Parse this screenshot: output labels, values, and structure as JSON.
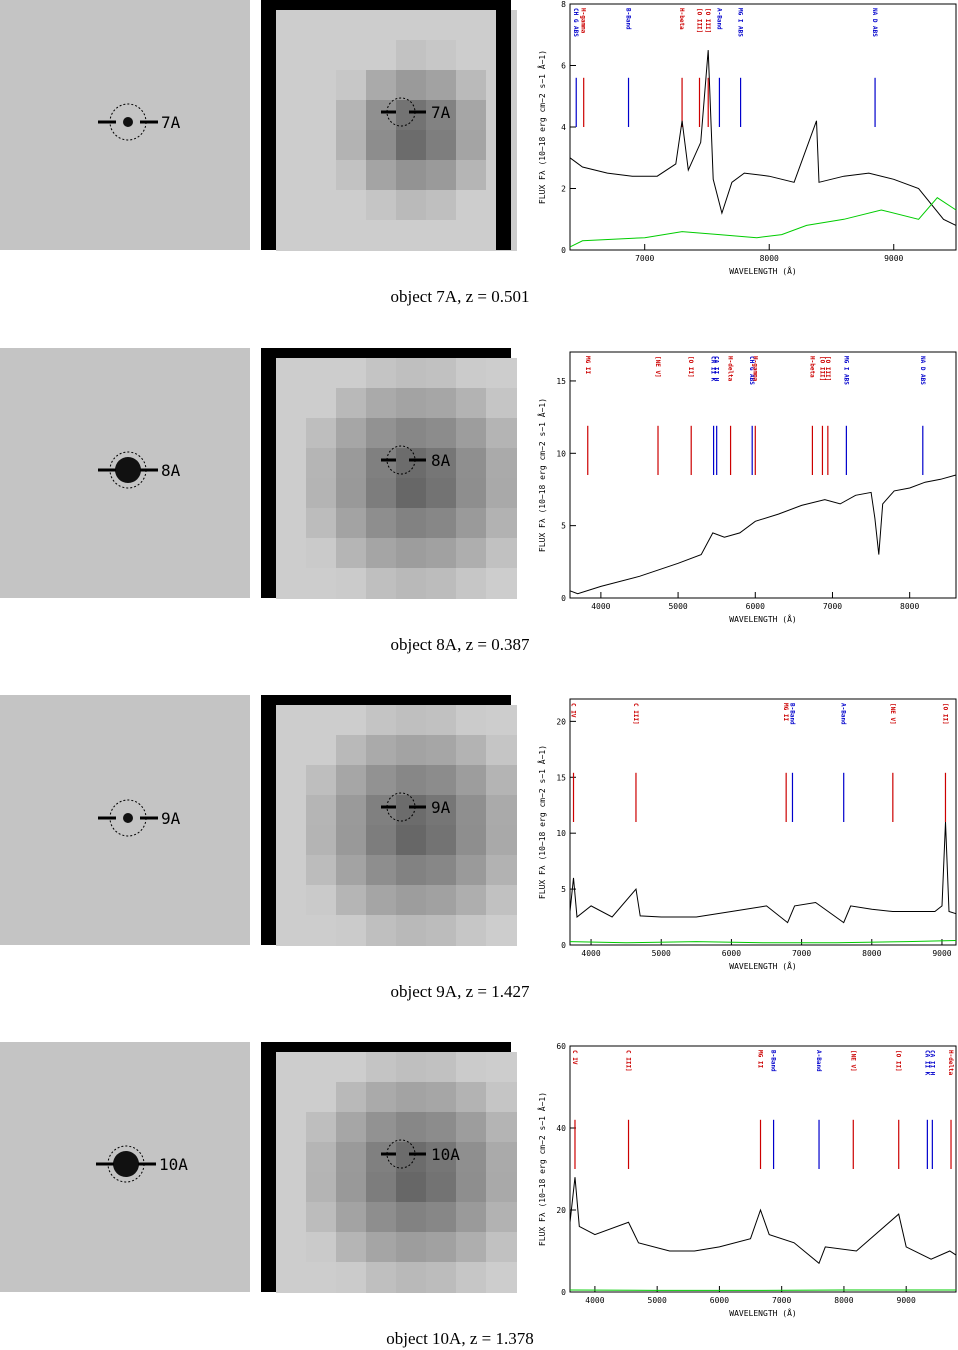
{
  "chart_data": [
    {
      "type": "line",
      "label": "7A",
      "caption": "object 7A, z = 0.501",
      "xlabel": "WAVELENGTH (Å)",
      "ylabel": "FLUX Fλ (10−18 erg cm−2 s−1 Å−1)",
      "xlim": [
        6400,
        9500
      ],
      "xticks": [
        7000,
        8000,
        9000
      ],
      "ylim": [
        0,
        8
      ],
      "yticks": [
        0,
        2,
        4,
        6,
        8
      ],
      "series": [
        {
          "color": "#000000",
          "x": [
            6400,
            6500,
            6700,
            6900,
            7100,
            7250,
            7300,
            7350,
            7450,
            7510,
            7550,
            7620,
            7700,
            7800,
            8000,
            8200,
            8380,
            8400,
            8600,
            8800,
            9000,
            9200,
            9400,
            9500
          ],
          "values": [
            3,
            2.7,
            2.5,
            2.4,
            2.4,
            2.8,
            4.2,
            2.6,
            3.5,
            6.5,
            2.3,
            1.2,
            2.2,
            2.5,
            2.4,
            2.2,
            4.2,
            2.2,
            2.4,
            2.5,
            2.3,
            2.0,
            1.0,
            0.8
          ]
        },
        {
          "color": "#00cc00",
          "x": [
            6400,
            6500,
            7000,
            7300,
            7600,
            7900,
            8100,
            8300,
            8600,
            8900,
            9200,
            9350,
            9500
          ],
          "values": [
            0.1,
            0.3,
            0.4,
            0.6,
            0.5,
            0.4,
            0.5,
            0.8,
            1.0,
            1.3,
            1.0,
            1.7,
            1.3
          ]
        }
      ],
      "lines": [
        {
          "label": "CH G ABS",
          "x": 6450,
          "color": "#0000cc"
        },
        {
          "label": "H-gamma",
          "x": 6510,
          "color": "#cc0000"
        },
        {
          "label": "B-Band",
          "x": 6870,
          "color": "#0000cc"
        },
        {
          "label": "H-beta",
          "x": 7300,
          "color": "#cc0000"
        },
        {
          "label": "[O III]",
          "x": 7440,
          "color": "#cc0000"
        },
        {
          "label": "[O III]",
          "x": 7510,
          "color": "#cc0000"
        },
        {
          "label": "A-Band",
          "x": 7600,
          "color": "#0000cc"
        },
        {
          "label": "MG I ABS",
          "x": 7770,
          "color": "#0000cc"
        },
        {
          "label": "NA D ABS",
          "x": 8850,
          "color": "#0000cc"
        }
      ]
    },
    {
      "type": "line",
      "label": "8A",
      "caption": "object 8A, z = 0.387",
      "xlabel": "WAVELENGTH (Å)",
      "ylabel": "FLUX Fλ (10−18 erg cm−2 s−1 Å−1)",
      "xlim": [
        3600,
        8600
      ],
      "xticks": [
        4000,
        5000,
        6000,
        7000,
        8000
      ],
      "ylim": [
        0,
        17
      ],
      "yticks": [
        0,
        5,
        10,
        15
      ],
      "series": [
        {
          "color": "#000000",
          "x": [
            3600,
            3700,
            4000,
            4500,
            5000,
            5300,
            5450,
            5600,
            5800,
            6000,
            6300,
            6600,
            6900,
            7100,
            7300,
            7500,
            7550,
            7600,
            7650,
            7800,
            8000,
            8200,
            8400,
            8600
          ],
          "values": [
            0.5,
            0.3,
            0.8,
            1.5,
            2.4,
            3.0,
            4.5,
            4.2,
            4.5,
            5.3,
            5.8,
            6.4,
            6.8,
            6.5,
            7.1,
            7.3,
            5.5,
            3.0,
            6.5,
            7.4,
            7.6,
            8.0,
            8.2,
            8.5
          ]
        }
      ],
      "lines": [
        {
          "label": "MG II",
          "x": 3830,
          "color": "#cc0000"
        },
        {
          "label": "[NE V]",
          "x": 4740,
          "color": "#cc0000"
        },
        {
          "label": "[O II]",
          "x": 5170,
          "color": "#cc0000"
        },
        {
          "label": "CA II K",
          "x": 5460,
          "color": "#0000cc"
        },
        {
          "label": "CA II H",
          "x": 5500,
          "color": "#0000cc"
        },
        {
          "label": "H-delta",
          "x": 5680,
          "color": "#cc0000"
        },
        {
          "label": "CH G ABS",
          "x": 5960,
          "color": "#0000cc"
        },
        {
          "label": "H-gamma",
          "x": 6000,
          "color": "#cc0000"
        },
        {
          "label": "H-beta",
          "x": 6740,
          "color": "#cc0000"
        },
        {
          "label": "[O III]",
          "x": 6870,
          "color": "#cc0000"
        },
        {
          "label": "[O III]",
          "x": 6940,
          "color": "#cc0000"
        },
        {
          "label": "MG I ABS",
          "x": 7180,
          "color": "#0000cc"
        },
        {
          "label": "NA D ABS",
          "x": 8170,
          "color": "#0000cc"
        }
      ]
    },
    {
      "type": "line",
      "label": "9A",
      "caption": "object 9A, z = 1.427",
      "xlabel": "WAVELENGTH (Å)",
      "ylabel": "FLUX Fλ (10−18 erg cm−2 s−1 Å−1)",
      "xlim": [
        3700,
        9200
      ],
      "xticks": [
        4000,
        5000,
        6000,
        7000,
        8000,
        9000
      ],
      "ylim": [
        0,
        22
      ],
      "yticks": [
        0,
        5,
        10,
        15,
        20
      ],
      "series": [
        {
          "color": "#000000",
          "x": [
            3700,
            3750,
            3800,
            4000,
            4300,
            4640,
            4700,
            5000,
            5500,
            6000,
            6500,
            6800,
            6900,
            7200,
            7600,
            7700,
            8000,
            8300,
            8600,
            8900,
            9000,
            9050,
            9100,
            9200
          ],
          "values": [
            3,
            6,
            2.5,
            3.5,
            2.5,
            5,
            2.6,
            2.5,
            2.5,
            3.0,
            3.5,
            2.0,
            3.5,
            3.8,
            2.0,
            3.5,
            3.2,
            3.0,
            3.0,
            3.0,
            3.5,
            11,
            3,
            2.8
          ]
        },
        {
          "color": "#00cc00",
          "x": [
            3700,
            4500,
            5500,
            6500,
            7500,
            8500,
            9200
          ],
          "values": [
            0.3,
            0.2,
            0.3,
            0.2,
            0.2,
            0.3,
            0.4
          ]
        }
      ],
      "lines": [
        {
          "label": "C IV",
          "x": 3750,
          "color": "#cc0000"
        },
        {
          "label": "C III]",
          "x": 4640,
          "color": "#cc0000"
        },
        {
          "label": "MG II",
          "x": 6780,
          "color": "#cc0000"
        },
        {
          "label": "B-Band",
          "x": 6870,
          "color": "#0000cc"
        },
        {
          "label": "A-Band",
          "x": 7600,
          "color": "#0000cc"
        },
        {
          "label": "[NE V]",
          "x": 8300,
          "color": "#cc0000"
        },
        {
          "label": "[O II]",
          "x": 9050,
          "color": "#cc0000"
        }
      ]
    },
    {
      "type": "line",
      "label": "10A",
      "caption": "object 10A, z = 1.378",
      "xlabel": "WAVELENGTH (Å)",
      "ylabel": "FLUX Fλ (10−18 erg cm−2 s−1 Å−1)",
      "xlim": [
        3600,
        9800
      ],
      "xticks": [
        4000,
        5000,
        6000,
        7000,
        8000,
        9000
      ],
      "ylim": [
        0,
        60
      ],
      "yticks": [
        0,
        20,
        40,
        60
      ],
      "series": [
        {
          "color": "#000000",
          "x": [
            3600,
            3680,
            3750,
            4000,
            4540,
            4700,
            5200,
            5600,
            6000,
            6500,
            6660,
            6800,
            7200,
            7600,
            7700,
            8200,
            8880,
            9000,
            9400,
            9700,
            9800
          ],
          "values": [
            17,
            28,
            16,
            14,
            17,
            12,
            10,
            10,
            11,
            13,
            20,
            14,
            12,
            7,
            11,
            10,
            19,
            11,
            8,
            10,
            9
          ]
        },
        {
          "color": "#00cc00",
          "x": [
            3600,
            5000,
            6500,
            8000,
            9800
          ],
          "values": [
            0.5,
            0.4,
            0.4,
            0.5,
            0.5
          ]
        }
      ],
      "lines": [
        {
          "label": "C IV",
          "x": 3680,
          "color": "#cc0000"
        },
        {
          "label": "C III]",
          "x": 4540,
          "color": "#cc0000"
        },
        {
          "label": "MG II",
          "x": 6660,
          "color": "#cc0000"
        },
        {
          "label": "B-Band",
          "x": 6870,
          "color": "#0000cc"
        },
        {
          "label": "A-Band",
          "x": 7600,
          "color": "#0000cc"
        },
        {
          "label": "[NE V]",
          "x": 8150,
          "color": "#cc0000"
        },
        {
          "label": "[O II]",
          "x": 8880,
          "color": "#cc0000"
        },
        {
          "label": "CA II K",
          "x": 9340,
          "color": "#0000cc"
        },
        {
          "label": "CA II H",
          "x": 9420,
          "color": "#0000cc"
        },
        {
          "label": "H-delta",
          "x": 9720,
          "color": "#cc0000"
        }
      ]
    }
  ]
}
